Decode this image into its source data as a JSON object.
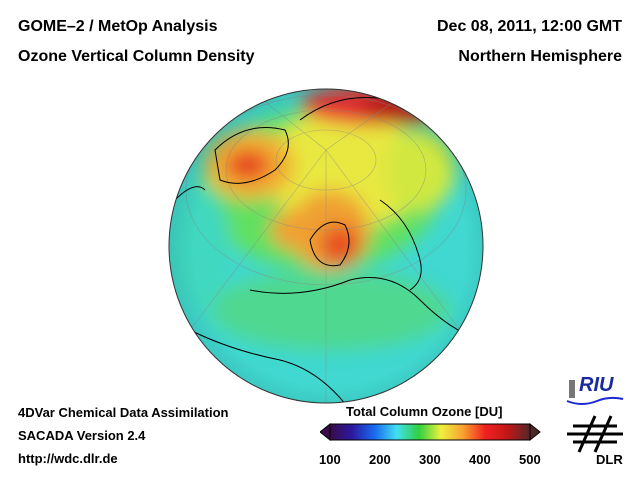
{
  "header": {
    "title_line1": "GOME–2 / MetOp Analysis",
    "title_line2": "Ozone Vertical Column Density",
    "date": "Dec 08, 2011, 12:00 GMT",
    "region": "Northern Hemisphere"
  },
  "footer": {
    "line1": "4DVar Chemical Data Assimilation",
    "line2": "SACADA Version 2.4",
    "url": "http://wdc.dlr.de"
  },
  "colorbar": {
    "title": "Total Column Ozone [DU]",
    "ticks": [
      "100",
      "200",
      "300",
      "400",
      "500"
    ],
    "range": [
      100,
      500
    ],
    "colors": [
      "#3a0a4a",
      "#2a1aa0",
      "#1a6af0",
      "#40e0f0",
      "#30d040",
      "#f0f040",
      "#f8a030",
      "#f02020",
      "#c01818",
      "#502828"
    ]
  },
  "logos": {
    "riu": "RIU",
    "dlr": "DLR"
  }
}
